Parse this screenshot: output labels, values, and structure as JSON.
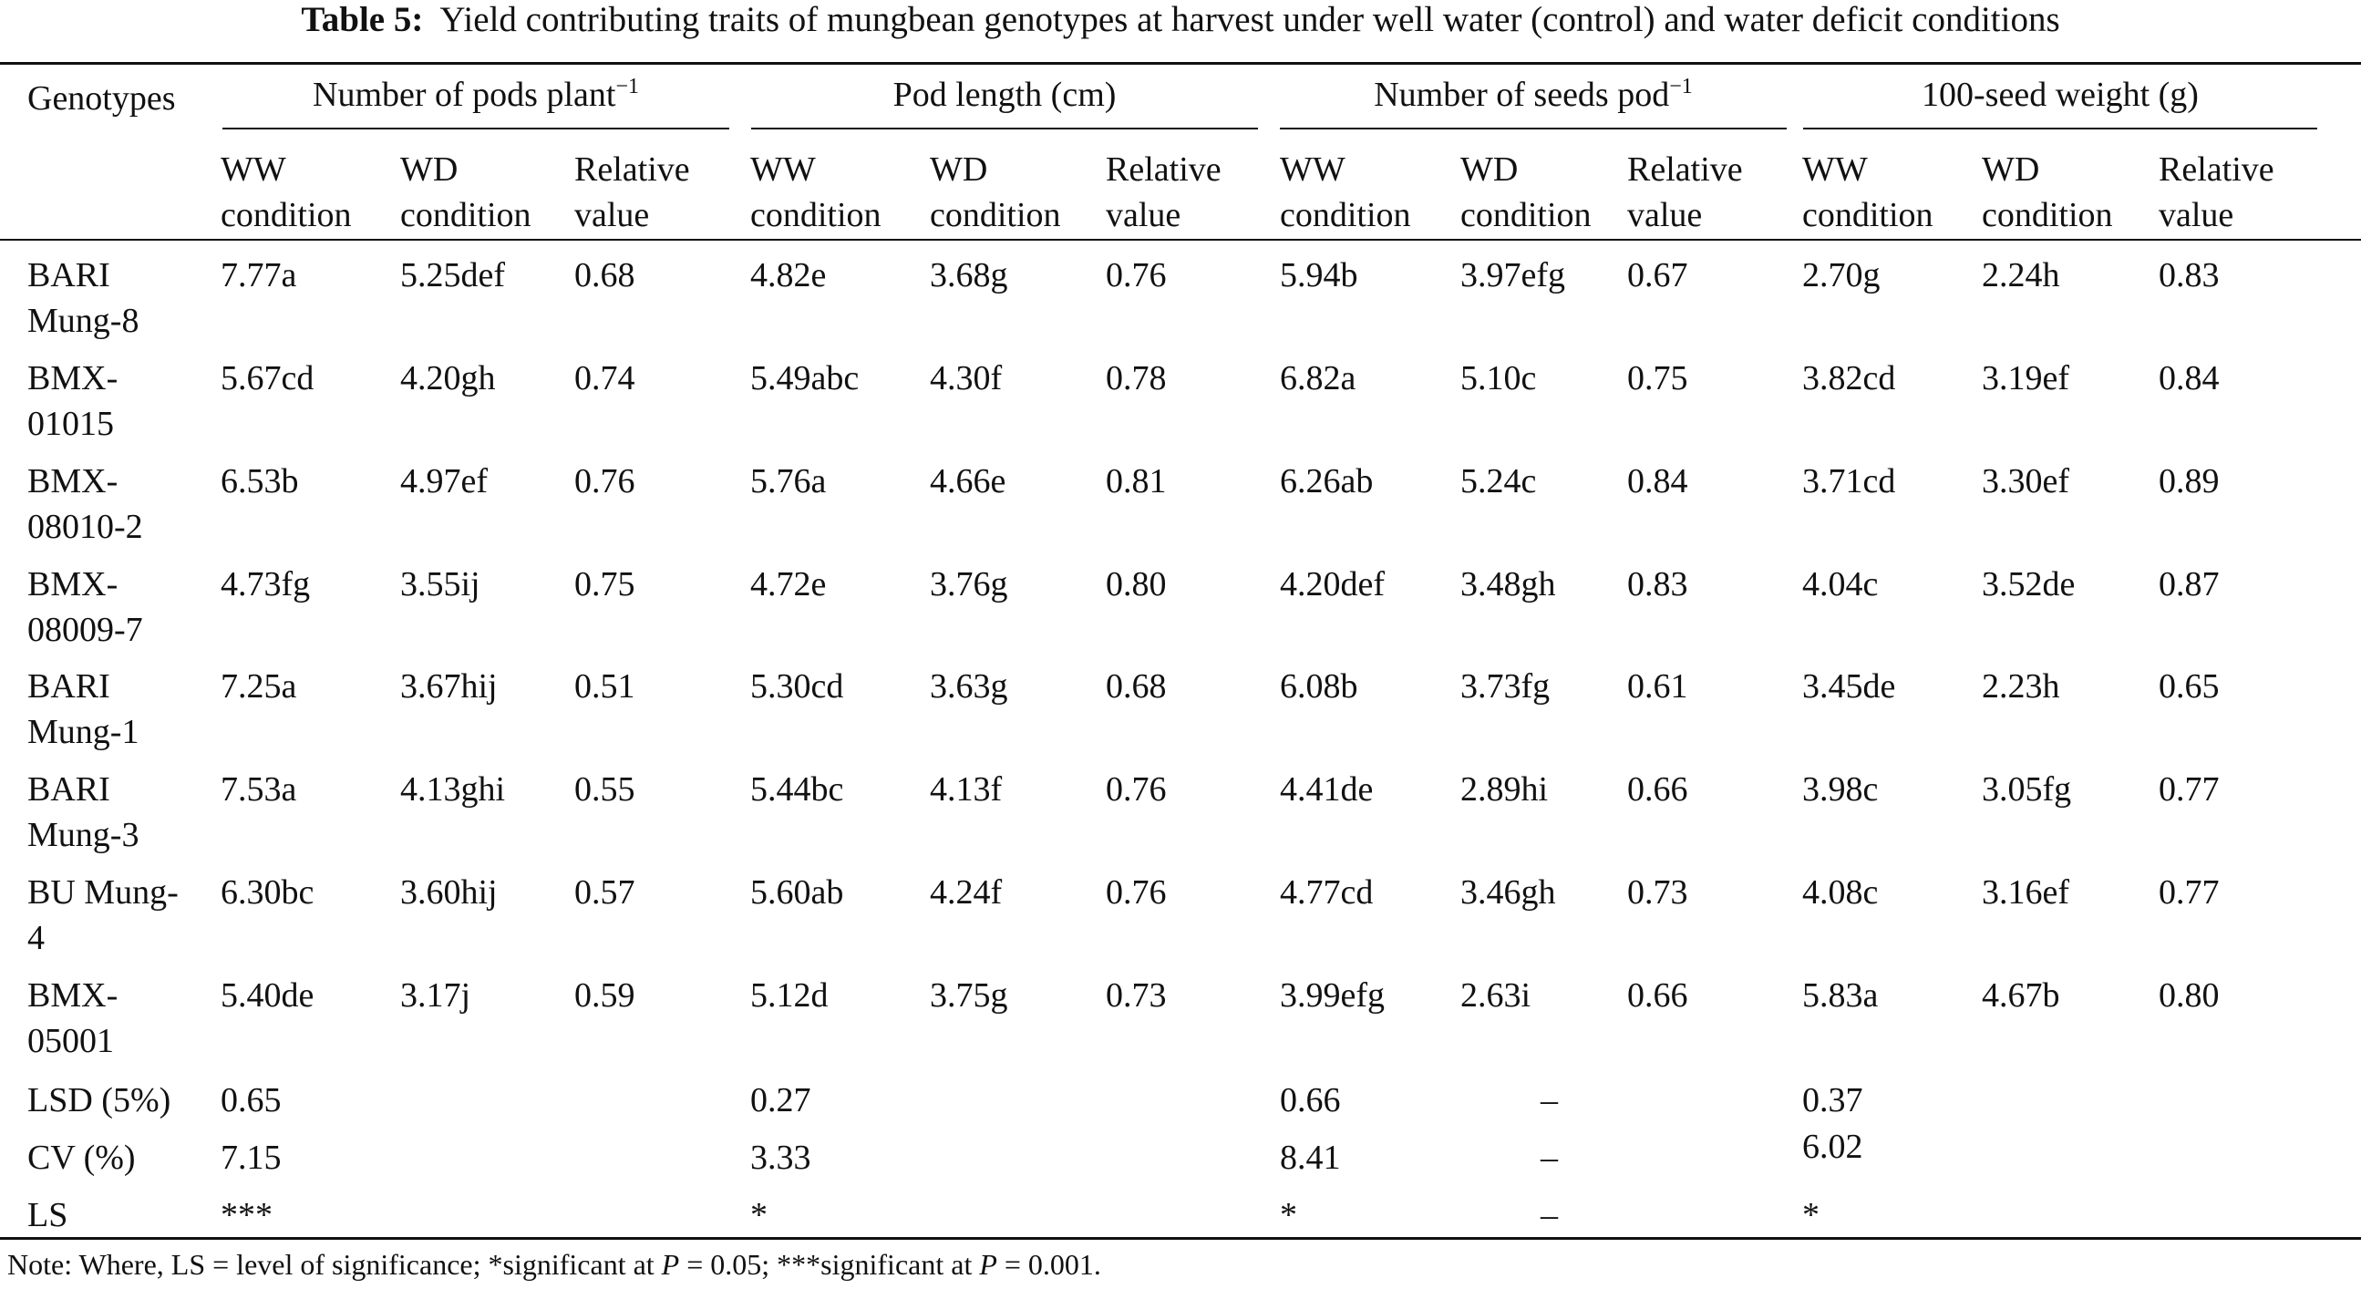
{
  "caption": {
    "label": "Table 5:",
    "text": "Yield contributing traits of mungbean genotypes at harvest under well water (control) and water deficit conditions"
  },
  "header": {
    "genotypes": "Genotypes",
    "groups": [
      {
        "base": "Number of pods plant",
        "sup": "−1"
      },
      {
        "base": "Pod length (cm)",
        "sup": ""
      },
      {
        "base": "Number of seeds pod",
        "sup": "−1"
      },
      {
        "base": "100-seed weight (g)",
        "sup": ""
      }
    ],
    "sub": {
      "ww_line1": "WW",
      "ww_line2": "condition",
      "wd_line1": "WD",
      "wd_line2": "condition",
      "rel_line1": "Relative",
      "rel_line2": "value"
    }
  },
  "rows": [
    {
      "genotype": [
        "BARI",
        "Mung-8"
      ],
      "values": [
        "7.77a",
        "5.25def",
        "0.68",
        "4.82e",
        "3.68g",
        "0.76",
        "5.94b",
        "3.97efg",
        "0.67",
        "2.70g",
        "2.24h",
        "0.83"
      ]
    },
    {
      "genotype": [
        "BMX-",
        "01015"
      ],
      "values": [
        "5.67cd",
        "4.20gh",
        "0.74",
        "5.49abc",
        "4.30f",
        "0.78",
        "6.82a",
        "5.10c",
        "0.75",
        "3.82cd",
        "3.19ef",
        "0.84"
      ]
    },
    {
      "genotype": [
        "BMX-",
        "08010-2"
      ],
      "values": [
        "6.53b",
        "4.97ef",
        "0.76",
        "5.76a",
        "4.66e",
        "0.81",
        "6.26ab",
        "5.24c",
        "0.84",
        "3.71cd",
        "3.30ef",
        "0.89"
      ]
    },
    {
      "genotype": [
        "BMX-",
        "08009-7"
      ],
      "values": [
        "4.73fg",
        "3.55ij",
        "0.75",
        "4.72e",
        "3.76g",
        "0.80",
        "4.20def",
        "3.48gh",
        "0.83",
        "4.04c",
        "3.52de",
        "0.87"
      ]
    },
    {
      "genotype": [
        "BARI",
        "Mung-1"
      ],
      "values": [
        "7.25a",
        "3.67hij",
        "0.51",
        "5.30cd",
        "3.63g",
        "0.68",
        "6.08b",
        "3.73fg",
        "0.61",
        "3.45de",
        "2.23h",
        "0.65"
      ]
    },
    {
      "genotype": [
        "BARI",
        "Mung-3"
      ],
      "values": [
        "7.53a",
        "4.13ghi",
        "0.55",
        "5.44bc",
        "4.13f",
        "0.76",
        "4.41de",
        "2.89hi",
        "0.66",
        "3.98c",
        "3.05fg",
        "0.77"
      ]
    },
    {
      "genotype": [
        "BU Mung-",
        "4"
      ],
      "values": [
        "6.30bc",
        "3.60hij",
        "0.57",
        "5.60ab",
        "4.24f",
        "0.76",
        "4.77cd",
        "3.46gh",
        "0.73",
        "4.08c",
        "3.16ef",
        "0.77"
      ]
    },
    {
      "genotype": [
        "BMX-",
        "05001"
      ],
      "values": [
        "5.40de",
        "3.17j",
        "0.59",
        "5.12d",
        "3.75g",
        "0.73",
        "3.99efg",
        "2.63i",
        "0.66",
        "5.83a",
        "4.67b",
        "0.80"
      ]
    }
  ],
  "stats": [
    {
      "label": "LSD (5%)",
      "values": [
        "0.65",
        "0.27",
        "0.66",
        "0.37"
      ],
      "dash": "–"
    },
    {
      "label": "CV (%)",
      "values": [
        "7.15",
        "3.33",
        "8.41",
        "6.02"
      ],
      "dash": "–"
    },
    {
      "label": "LS",
      "values": [
        "***",
        "*",
        "*",
        "*"
      ],
      "dash": "–"
    }
  ],
  "note": {
    "part1": "Note: Where, LS = level of significance; *significant at ",
    "p1": "P",
    "part2": " = 0.05; ***significant at ",
    "p2": "P",
    "part3": " = 0.001."
  }
}
